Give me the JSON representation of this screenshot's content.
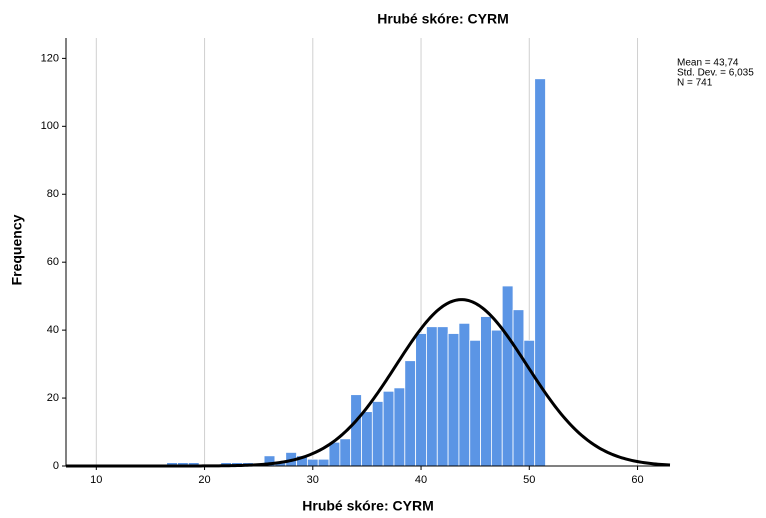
{
  "chart_data": {
    "type": "histogram",
    "title": "Hrubé skóre: CYRM",
    "x_label": "Hrubé skóre: CYRM",
    "y_label": "Frequency",
    "bins": [
      16.5,
      17.5,
      18.5,
      19.5,
      20.5,
      21.5,
      22.5,
      23.5,
      24.5,
      25.5,
      26.5,
      27.5,
      28.5,
      29.5,
      30.5,
      31.5,
      32.5,
      33.5,
      34.5,
      35.5,
      36.5,
      37.5,
      38.5,
      39.5,
      40.5,
      41.5,
      42.5,
      43.5,
      44.5,
      45.5,
      46.5,
      47.5,
      48.5,
      49.5,
      50.5,
      51.5
    ],
    "counts": [
      1,
      1,
      1,
      0,
      0,
      1,
      1,
      1,
      0,
      3,
      1,
      4,
      3,
      2,
      2,
      7,
      8,
      21,
      16,
      19,
      22,
      23,
      31,
      39,
      41,
      41,
      39,
      42,
      37,
      44,
      40,
      53,
      46,
      37,
      114
    ],
    "color": "#5b95e5",
    "normal_curve": {
      "mean": {
        "value": 43.74,
        "label": "Mean = 43,74"
      },
      "sd": {
        "value": 6.035,
        "label": "Std. Dev. = 6,035"
      },
      "n": {
        "value": 741,
        "label": "N = 741"
      },
      "color": "#000000"
    },
    "xlim": [
      7.2,
      63
    ],
    "xticks": [
      10,
      20,
      30,
      40,
      50,
      60
    ],
    "ylim": [
      0,
      126
    ],
    "yticks": [
      0,
      20,
      40,
      60,
      80,
      100,
      120
    ],
    "grid": "x"
  }
}
